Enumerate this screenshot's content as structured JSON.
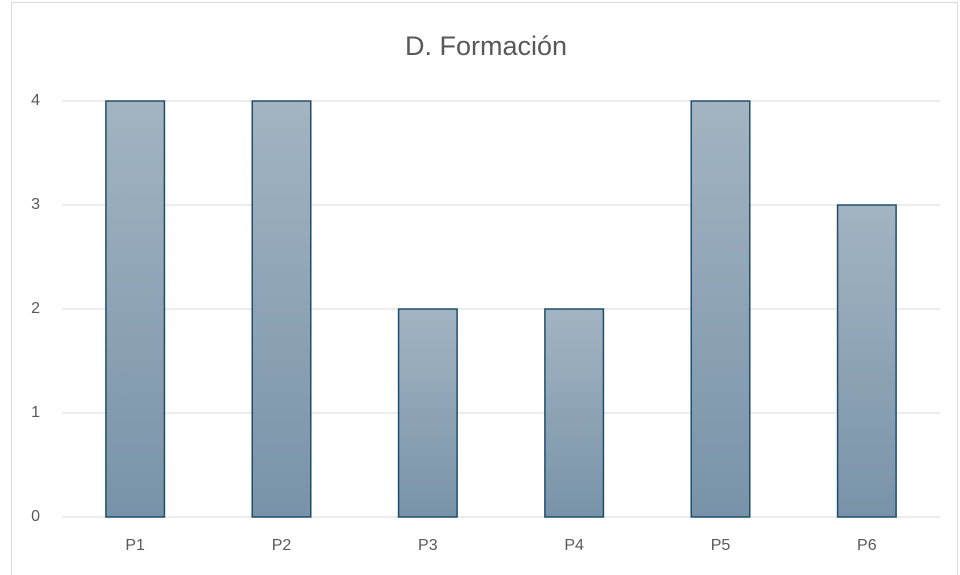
{
  "chart_data": {
    "type": "bar",
    "title": "D. Formación",
    "categories": [
      "P1",
      "P2",
      "P3",
      "P4",
      "P5",
      "P6"
    ],
    "values": [
      4,
      4,
      2,
      2,
      4,
      3
    ],
    "gradient": [
      "#a3b4c2",
      "#7893a9"
    ],
    "edgecolor": "#1f4e6b",
    "ylim": [
      0,
      4
    ],
    "yticks": [
      0,
      1,
      2,
      3,
      4
    ],
    "grid": true
  }
}
